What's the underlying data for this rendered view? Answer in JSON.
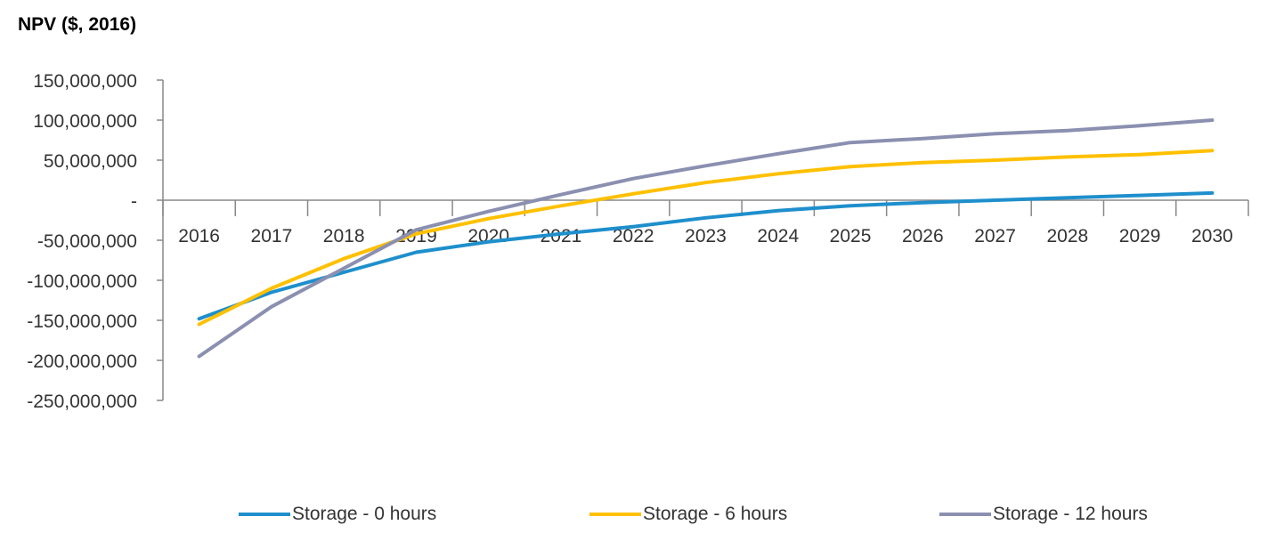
{
  "chart_data": {
    "type": "line",
    "title": "NPV ($, 2016)",
    "x": [
      "2016",
      "2017",
      "2018",
      "2019",
      "2020",
      "2021",
      "2022",
      "2023",
      "2024",
      "2025",
      "2026",
      "2027",
      "2028",
      "2029",
      "2030"
    ],
    "ylim": [
      -250000000,
      150000000
    ],
    "yticks": [
      150000000,
      100000000,
      50000000,
      0,
      -50000000,
      -100000000,
      -150000000,
      -200000000,
      -250000000
    ],
    "ytick_labels": [
      "150,000,000",
      "100,000,000",
      "50,000,000",
      "-",
      "-50,000,000",
      "-100,000,000",
      "-150,000,000",
      "-200,000,000",
      "-250,000,000"
    ],
    "grid": false,
    "legend_position": "bottom",
    "series": [
      {
        "name": "Storage - 0 hours",
        "color": "#1e8fcc",
        "values": [
          -148000000,
          -115000000,
          -90000000,
          -65000000,
          -52000000,
          -42000000,
          -33000000,
          -22000000,
          -13000000,
          -7000000,
          -3000000,
          0,
          3000000,
          6000000,
          9000000
        ]
      },
      {
        "name": "Storage - 6 hours",
        "color": "#ffc000",
        "values": [
          -155000000,
          -110000000,
          -73000000,
          -42000000,
          -23000000,
          -7000000,
          8000000,
          22000000,
          33000000,
          42000000,
          47000000,
          50000000,
          54000000,
          57000000,
          62000000
        ]
      },
      {
        "name": "Storage - 12 hours",
        "color": "#8b8fb0",
        "values": [
          -195000000,
          -133000000,
          -85000000,
          -37000000,
          -14000000,
          7000000,
          27000000,
          43000000,
          58000000,
          72000000,
          77000000,
          83000000,
          87000000,
          93000000,
          100000000
        ]
      }
    ]
  }
}
